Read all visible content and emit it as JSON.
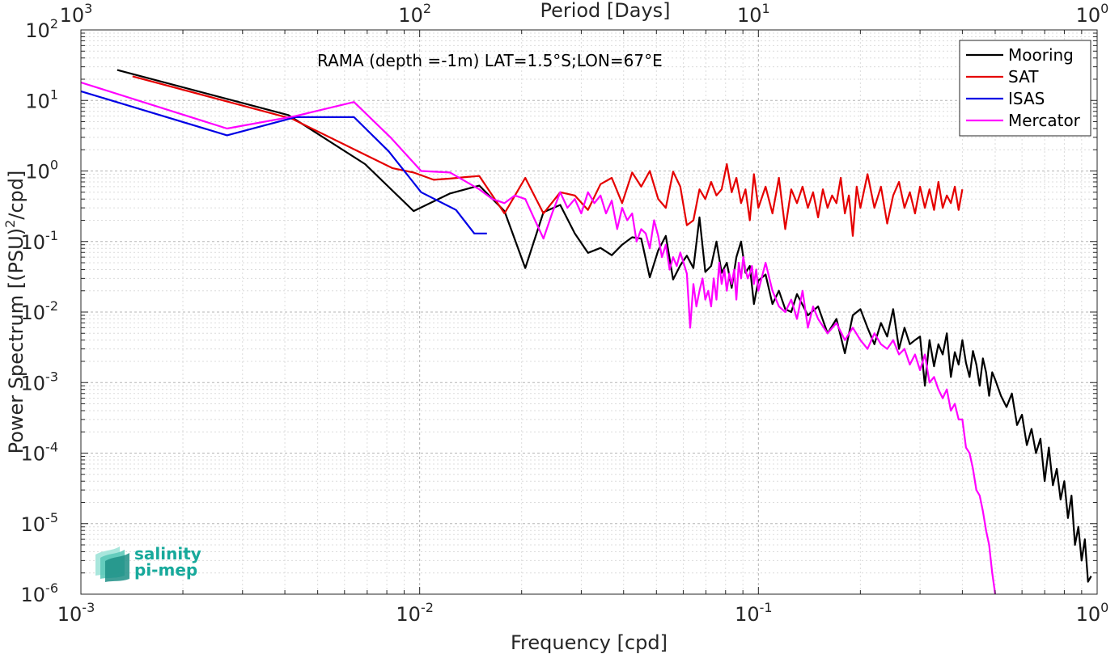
{
  "logo": {
    "line1": "salinity",
    "line2": "pi-mep",
    "color": "#17a99b"
  },
  "chart_data": {
    "type": "line",
    "title": "",
    "annotation": "RAMA (depth =-1m) LAT=1.5°S;LON=67°E",
    "xlabel": "Frequency [cpd]",
    "ylabel": "Power Spectrum [(PSU)²/cpd]",
    "ylabel_parts": {
      "base": "Power Spectrum [(PSU)",
      "sup": "2",
      "tail": "/cpd]"
    },
    "top_xlabel": "Period [Days]",
    "x_scale": "log",
    "y_scale": "log",
    "xlim": [
      0.001,
      1
    ],
    "ylim": [
      1e-06,
      100
    ],
    "grid": true,
    "legend_position": "top-right",
    "x_ticks": [
      {
        "value": 0.001,
        "base": "10",
        "exp": "-3"
      },
      {
        "value": 0.01,
        "base": "10",
        "exp": "-2"
      },
      {
        "value": 0.1,
        "base": "10",
        "exp": "-1"
      },
      {
        "value": 1,
        "base": "10",
        "exp": "0"
      }
    ],
    "top_ticks": [
      {
        "freq": 0.001,
        "base": "10",
        "exp": "3"
      },
      {
        "freq": 0.01,
        "base": "10",
        "exp": "2"
      },
      {
        "freq": 0.1,
        "base": "10",
        "exp": "1"
      },
      {
        "freq": 1,
        "base": "10",
        "exp": "0"
      }
    ],
    "y_ticks": [
      {
        "value": 1e-06,
        "base": "10",
        "exp": "-6"
      },
      {
        "value": 1e-05,
        "base": "10",
        "exp": "-5"
      },
      {
        "value": 0.0001,
        "base": "10",
        "exp": "-4"
      },
      {
        "value": 0.001,
        "base": "10",
        "exp": "-3"
      },
      {
        "value": 0.01,
        "base": "10",
        "exp": "-2"
      },
      {
        "value": 0.1,
        "base": "10",
        "exp": "-1"
      },
      {
        "value": 1,
        "base": "10",
        "exp": "0"
      },
      {
        "value": 10,
        "base": "10",
        "exp": "1"
      },
      {
        "value": 100,
        "base": "10",
        "exp": "2"
      }
    ],
    "series": [
      {
        "name": "Mooring",
        "color": "#000000",
        "x": [
          0.00128,
          0.0041,
          0.0069,
          0.0096,
          0.0123,
          0.015,
          0.0178,
          0.0205,
          0.0232,
          0.026,
          0.0287,
          0.0314,
          0.0342,
          0.0369,
          0.0396,
          0.0424,
          0.0451,
          0.0478,
          0.0506,
          0.0533,
          0.056,
          0.0588,
          0.0615,
          0.0643,
          0.067,
          0.0697,
          0.0725,
          0.0752,
          0.0779,
          0.0807,
          0.0834,
          0.0861,
          0.0889,
          0.0916,
          0.0943,
          0.097,
          0.1,
          0.105,
          0.11,
          0.115,
          0.12,
          0.125,
          0.13,
          0.14,
          0.15,
          0.16,
          0.17,
          0.18,
          0.19,
          0.2,
          0.21,
          0.22,
          0.23,
          0.24,
          0.25,
          0.26,
          0.27,
          0.28,
          0.29,
          0.3,
          0.31,
          0.32,
          0.33,
          0.34,
          0.35,
          0.36,
          0.37,
          0.38,
          0.39,
          0.4,
          0.41,
          0.42,
          0.43,
          0.44,
          0.45,
          0.46,
          0.47,
          0.48,
          0.49,
          0.5,
          0.52,
          0.54,
          0.56,
          0.58,
          0.6,
          0.62,
          0.64,
          0.66,
          0.68,
          0.7,
          0.72,
          0.74,
          0.76,
          0.78,
          0.8,
          0.82,
          0.84,
          0.86,
          0.88,
          0.9,
          0.92,
          0.94,
          0.96
        ],
        "y": [
          27,
          6.2,
          1.25,
          0.27,
          0.48,
          0.62,
          0.27,
          0.042,
          0.26,
          0.33,
          0.13,
          0.069,
          0.081,
          0.064,
          0.09,
          0.115,
          0.11,
          0.031,
          0.075,
          0.12,
          0.029,
          0.046,
          0.063,
          0.042,
          0.22,
          0.037,
          0.045,
          0.1,
          0.036,
          0.05,
          0.022,
          0.06,
          0.1,
          0.036,
          0.045,
          0.013,
          0.028,
          0.034,
          0.013,
          0.02,
          0.011,
          0.01,
          0.018,
          0.009,
          0.012,
          0.005,
          0.008,
          0.0026,
          0.009,
          0.011,
          0.006,
          0.0035,
          0.007,
          0.0045,
          0.011,
          0.003,
          0.006,
          0.0035,
          0.004,
          0.0045,
          0.0009,
          0.004,
          0.0017,
          0.0035,
          0.0025,
          0.005,
          0.0012,
          0.0027,
          0.0018,
          0.004,
          0.0019,
          0.0012,
          0.0028,
          0.0018,
          0.0009,
          0.0022,
          0.0014,
          0.00065,
          0.0014,
          0.0011,
          0.00065,
          0.00045,
          0.0007,
          0.00025,
          0.00035,
          0.00013,
          0.00022,
          0.0001,
          0.00016,
          4e-05,
          0.00012,
          3.5e-05,
          6e-05,
          2.2e-05,
          4e-05,
          1.2e-05,
          2.5e-05,
          5e-06,
          9e-06,
          3e-06,
          6e-06,
          1.5e-06,
          1.8e-06
        ]
      },
      {
        "name": "SAT",
        "color": "#e50000",
        "x": [
          0.00142,
          0.0042,
          0.0069,
          0.0083,
          0.0096,
          0.011,
          0.0123,
          0.0137,
          0.015,
          0.0178,
          0.0205,
          0.0232,
          0.026,
          0.0287,
          0.0314,
          0.0342,
          0.0369,
          0.0396,
          0.0424,
          0.0451,
          0.0478,
          0.0506,
          0.0533,
          0.056,
          0.0588,
          0.0615,
          0.0643,
          0.067,
          0.0697,
          0.0725,
          0.0752,
          0.0779,
          0.0807,
          0.0834,
          0.0861,
          0.0889,
          0.0916,
          0.0943,
          0.097,
          0.1,
          0.105,
          0.11,
          0.115,
          0.12,
          0.125,
          0.13,
          0.135,
          0.14,
          0.145,
          0.15,
          0.155,
          0.16,
          0.165,
          0.17,
          0.175,
          0.18,
          0.185,
          0.19,
          0.195,
          0.2,
          0.21,
          0.22,
          0.23,
          0.24,
          0.25,
          0.26,
          0.27,
          0.28,
          0.29,
          0.3,
          0.31,
          0.32,
          0.33,
          0.34,
          0.35,
          0.36,
          0.37,
          0.38,
          0.39,
          0.4
        ],
        "y": [
          22,
          5.5,
          1.7,
          1.1,
          0.95,
          0.75,
          0.78,
          0.82,
          0.85,
          0.25,
          0.8,
          0.25,
          0.5,
          0.45,
          0.28,
          0.65,
          0.8,
          0.35,
          0.95,
          0.6,
          1.0,
          0.4,
          0.3,
          0.98,
          0.6,
          0.17,
          0.2,
          0.55,
          0.4,
          0.7,
          0.45,
          0.55,
          1.25,
          0.5,
          0.8,
          0.35,
          0.55,
          0.2,
          0.9,
          0.3,
          0.6,
          0.25,
          0.8,
          0.15,
          0.55,
          0.35,
          0.6,
          0.3,
          0.5,
          0.22,
          0.55,
          0.3,
          0.45,
          0.35,
          0.8,
          0.25,
          0.45,
          0.12,
          0.6,
          0.3,
          0.9,
          0.3,
          0.6,
          0.18,
          0.45,
          0.7,
          0.3,
          0.5,
          0.25,
          0.6,
          0.3,
          0.55,
          0.28,
          0.7,
          0.3,
          0.45,
          0.35,
          0.6,
          0.28,
          0.55
        ]
      },
      {
        "name": "ISAS",
        "color": "#0000e5",
        "x": [
          0.001,
          0.0027,
          0.0043,
          0.0064,
          0.0081,
          0.0101,
          0.0128,
          0.0145,
          0.0158
        ],
        "y": [
          13.5,
          3.2,
          5.8,
          5.8,
          1.9,
          0.5,
          0.28,
          0.13,
          0.13
        ]
      },
      {
        "name": "Mercator",
        "color": "#ff00ff",
        "x": [
          0.001,
          0.0027,
          0.0043,
          0.0064,
          0.0082,
          0.0101,
          0.0123,
          0.015,
          0.0164,
          0.0178,
          0.0191,
          0.0205,
          0.0219,
          0.0232,
          0.0246,
          0.026,
          0.0273,
          0.0287,
          0.03,
          0.0314,
          0.0328,
          0.0342,
          0.0355,
          0.0369,
          0.0383,
          0.0396,
          0.041,
          0.0424,
          0.0437,
          0.0451,
          0.0465,
          0.0478,
          0.0492,
          0.0506,
          0.0519,
          0.0533,
          0.0547,
          0.056,
          0.0574,
          0.0588,
          0.0601,
          0.0615,
          0.0629,
          0.0643,
          0.0656,
          0.067,
          0.0684,
          0.0697,
          0.0711,
          0.0725,
          0.0738,
          0.0752,
          0.0766,
          0.0779,
          0.0793,
          0.0807,
          0.082,
          0.0834,
          0.0848,
          0.0861,
          0.0875,
          0.0889,
          0.0902,
          0.0916,
          0.093,
          0.0943,
          0.0957,
          0.097,
          0.0985,
          0.1,
          0.105,
          0.11,
          0.115,
          0.12,
          0.125,
          0.13,
          0.135,
          0.14,
          0.145,
          0.15,
          0.16,
          0.17,
          0.18,
          0.19,
          0.2,
          0.21,
          0.22,
          0.23,
          0.24,
          0.25,
          0.26,
          0.27,
          0.28,
          0.29,
          0.3,
          0.31,
          0.32,
          0.33,
          0.34,
          0.35,
          0.36,
          0.37,
          0.38,
          0.39,
          0.4,
          0.41,
          0.42,
          0.43,
          0.44,
          0.45,
          0.46,
          0.47,
          0.48,
          0.49,
          0.5
        ],
        "y": [
          18,
          4.0,
          6.0,
          9.5,
          3.0,
          1.0,
          0.95,
          0.55,
          0.4,
          0.35,
          0.45,
          0.4,
          0.2,
          0.11,
          0.25,
          0.5,
          0.3,
          0.4,
          0.25,
          0.5,
          0.35,
          0.45,
          0.25,
          0.38,
          0.15,
          0.3,
          0.2,
          0.25,
          0.1,
          0.15,
          0.13,
          0.08,
          0.2,
          0.12,
          0.06,
          0.09,
          0.04,
          0.06,
          0.045,
          0.07,
          0.05,
          0.035,
          0.006,
          0.025,
          0.012,
          0.02,
          0.03,
          0.015,
          0.02,
          0.012,
          0.03,
          0.015,
          0.05,
          0.025,
          0.04,
          0.02,
          0.035,
          0.025,
          0.04,
          0.015,
          0.05,
          0.03,
          0.06,
          0.04,
          0.03,
          0.035,
          0.045,
          0.025,
          0.04,
          0.02,
          0.05,
          0.02,
          0.012,
          0.01,
          0.015,
          0.008,
          0.02,
          0.006,
          0.012,
          0.008,
          0.005,
          0.007,
          0.004,
          0.006,
          0.004,
          0.003,
          0.005,
          0.0035,
          0.003,
          0.004,
          0.0025,
          0.003,
          0.0018,
          0.0025,
          0.0015,
          0.0025,
          0.001,
          0.0012,
          0.0008,
          0.0006,
          0.0008,
          0.0004,
          0.0005,
          0.0003,
          0.0003,
          0.00012,
          0.0001,
          6e-05,
          3e-05,
          2.5e-05,
          1.5e-05,
          8e-06,
          5e-06,
          2e-06,
          1e-06
        ]
      }
    ]
  }
}
